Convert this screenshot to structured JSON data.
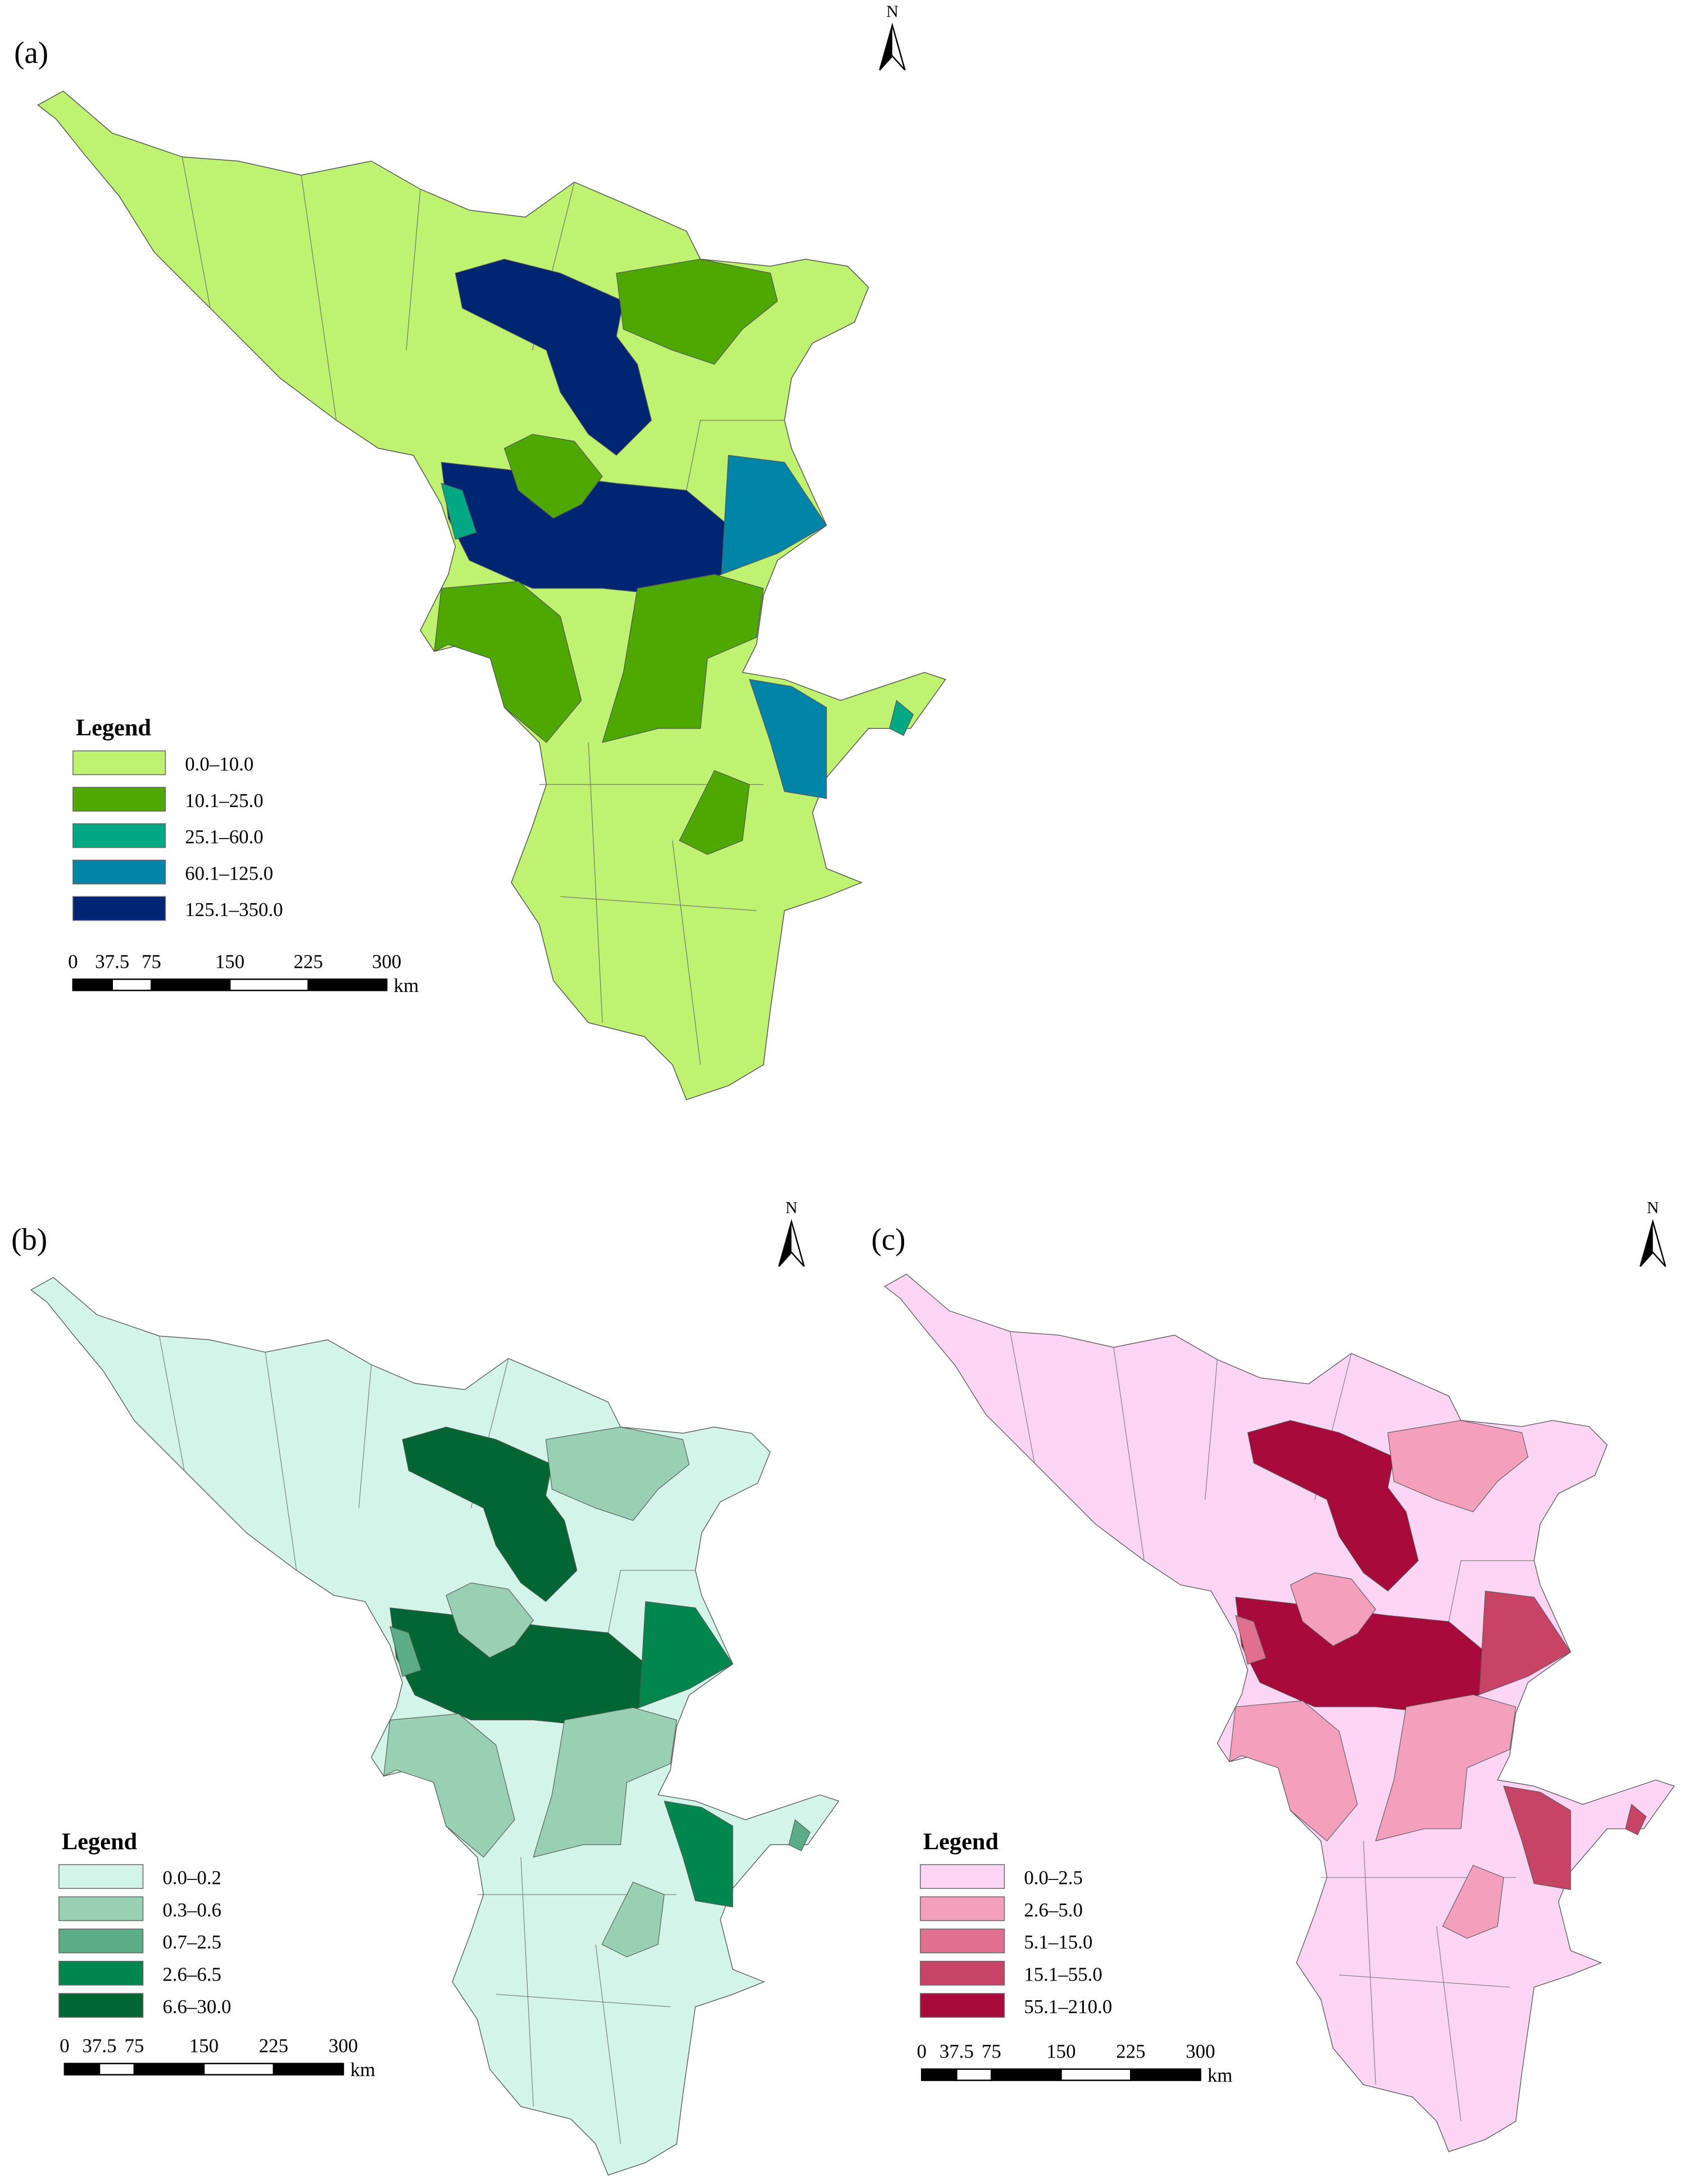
{
  "panels": [
    {
      "label": "(a)",
      "north": "N",
      "legend_title": "Legend",
      "legend": [
        {
          "label": "0.0–10.0",
          "color": "#c0f272"
        },
        {
          "label": "10.1–25.0",
          "color": "#4fa800"
        },
        {
          "label": "25.1–60.0",
          "color": "#00a884"
        },
        {
          "label": "60.1–125.0",
          "color": "#0084a8"
        },
        {
          "label": "125.1–350.0",
          "color": "#002673"
        }
      ],
      "scale": {
        "ticks": [
          0,
          37.5,
          75,
          150,
          225,
          300
        ],
        "unit": "km"
      }
    },
    {
      "label": "(b)",
      "north": "N",
      "legend_title": "Legend",
      "legend": [
        {
          "label": "0.0–0.2",
          "color": "#d3f4e8"
        },
        {
          "label": "0.3–0.6",
          "color": "#99cfb2"
        },
        {
          "label": "0.7–2.5",
          "color": "#5aad87"
        },
        {
          "label": "2.6–6.5",
          "color": "#00874f"
        },
        {
          "label": "6.6–30.0",
          "color": "#006633"
        }
      ],
      "scale": {
        "ticks": [
          0,
          37.5,
          75,
          150,
          225,
          300
        ],
        "unit": "km"
      }
    },
    {
      "label": "(c)",
      "north": "N",
      "legend_title": "Legend",
      "legend": [
        {
          "label": "0.0–2.5",
          "color": "#fcd5f5"
        },
        {
          "label": "2.6–5.0",
          "color": "#f4a0bd"
        },
        {
          "label": "5.1–15.0",
          "color": "#e0708e"
        },
        {
          "label": "15.1–55.0",
          "color": "#c84466"
        },
        {
          "label": "55.1–210.0",
          "color": "#a80a3c"
        }
      ],
      "scale": {
        "ticks": [
          0,
          37.5,
          75,
          150,
          225,
          300
        ],
        "unit": "km"
      }
    }
  ]
}
